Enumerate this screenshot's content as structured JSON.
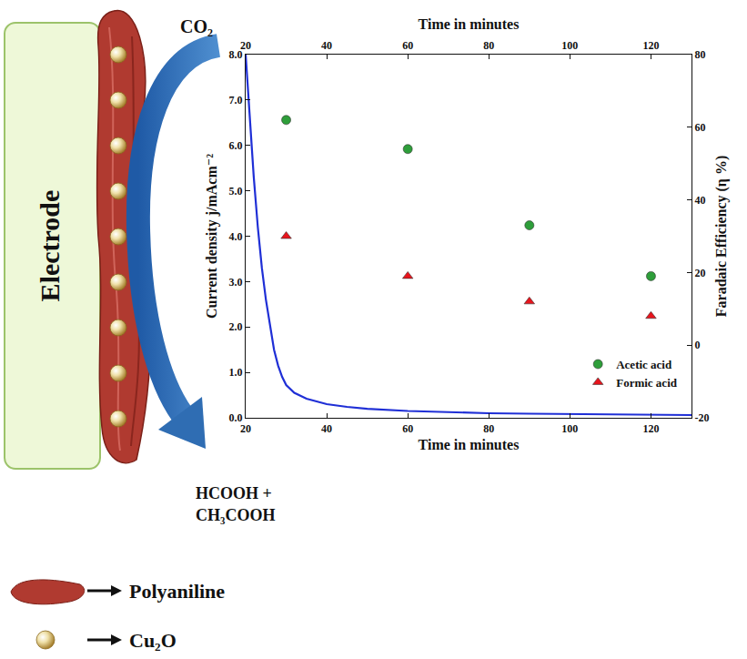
{
  "chart_data": {
    "type": "scatter",
    "x_label": "Time in minutes",
    "x2_label": "Time in minutes",
    "y_label": "Current density j/mAcm⁻²",
    "y2_label": "Faradaic Efficiency (η %)",
    "xlim": [
      20,
      130
    ],
    "xticks": [
      20,
      40,
      60,
      80,
      100,
      120
    ],
    "ylim": [
      0,
      8
    ],
    "yticks": [
      {
        "value": 0,
        "label": "0.0"
      },
      {
        "value": 1,
        "label": "1.0"
      },
      {
        "value": 2,
        "label": "2.0"
      },
      {
        "value": 3,
        "label": "3.0"
      },
      {
        "value": 4,
        "label": "4.0"
      },
      {
        "value": 5,
        "label": "5.0"
      },
      {
        "value": 6,
        "label": "6.0"
      },
      {
        "value": 7,
        "label": "7.0"
      },
      {
        "value": 8,
        "label": "8.0"
      }
    ],
    "y2lim": [
      -20,
      80
    ],
    "y2ticks": [
      -20,
      0,
      20,
      40,
      60,
      80
    ],
    "legend": "lower right",
    "series": [
      {
        "type": "line",
        "color": "#1f2fd6",
        "axis": "y",
        "x": [
          20,
          21,
          22,
          23,
          24,
          25,
          26,
          27,
          28,
          29,
          30,
          32,
          35,
          40,
          45,
          50,
          60,
          70,
          80,
          90,
          100,
          110,
          120,
          130
        ],
        "values": [
          8.0,
          6.6,
          5.3,
          4.2,
          3.3,
          2.6,
          2.0,
          1.5,
          1.15,
          0.9,
          0.72,
          0.55,
          0.42,
          0.3,
          0.24,
          0.2,
          0.15,
          0.12,
          0.1,
          0.09,
          0.08,
          0.07,
          0.06,
          0.06
        ]
      },
      {
        "name": "Acetic acid",
        "type": "scatter",
        "color": "#2e9e3a",
        "marker": "circle",
        "axis": "y2",
        "x": [
          30,
          60,
          90,
          120
        ],
        "values": [
          62,
          54,
          33,
          19
        ]
      },
      {
        "name": "Formic acid",
        "type": "scatter",
        "color": "#e8141c",
        "marker": "triangle-up",
        "axis": "y2",
        "x": [
          30,
          60,
          90,
          120
        ],
        "values": [
          30,
          19,
          12,
          8
        ]
      }
    ]
  },
  "diagram": {
    "electrode_label": "Electrode",
    "input": "CO₂",
    "products": [
      "HCOOH +",
      "CH₃COOH"
    ],
    "key": [
      "Polyaniline",
      "Cu₂O"
    ]
  }
}
